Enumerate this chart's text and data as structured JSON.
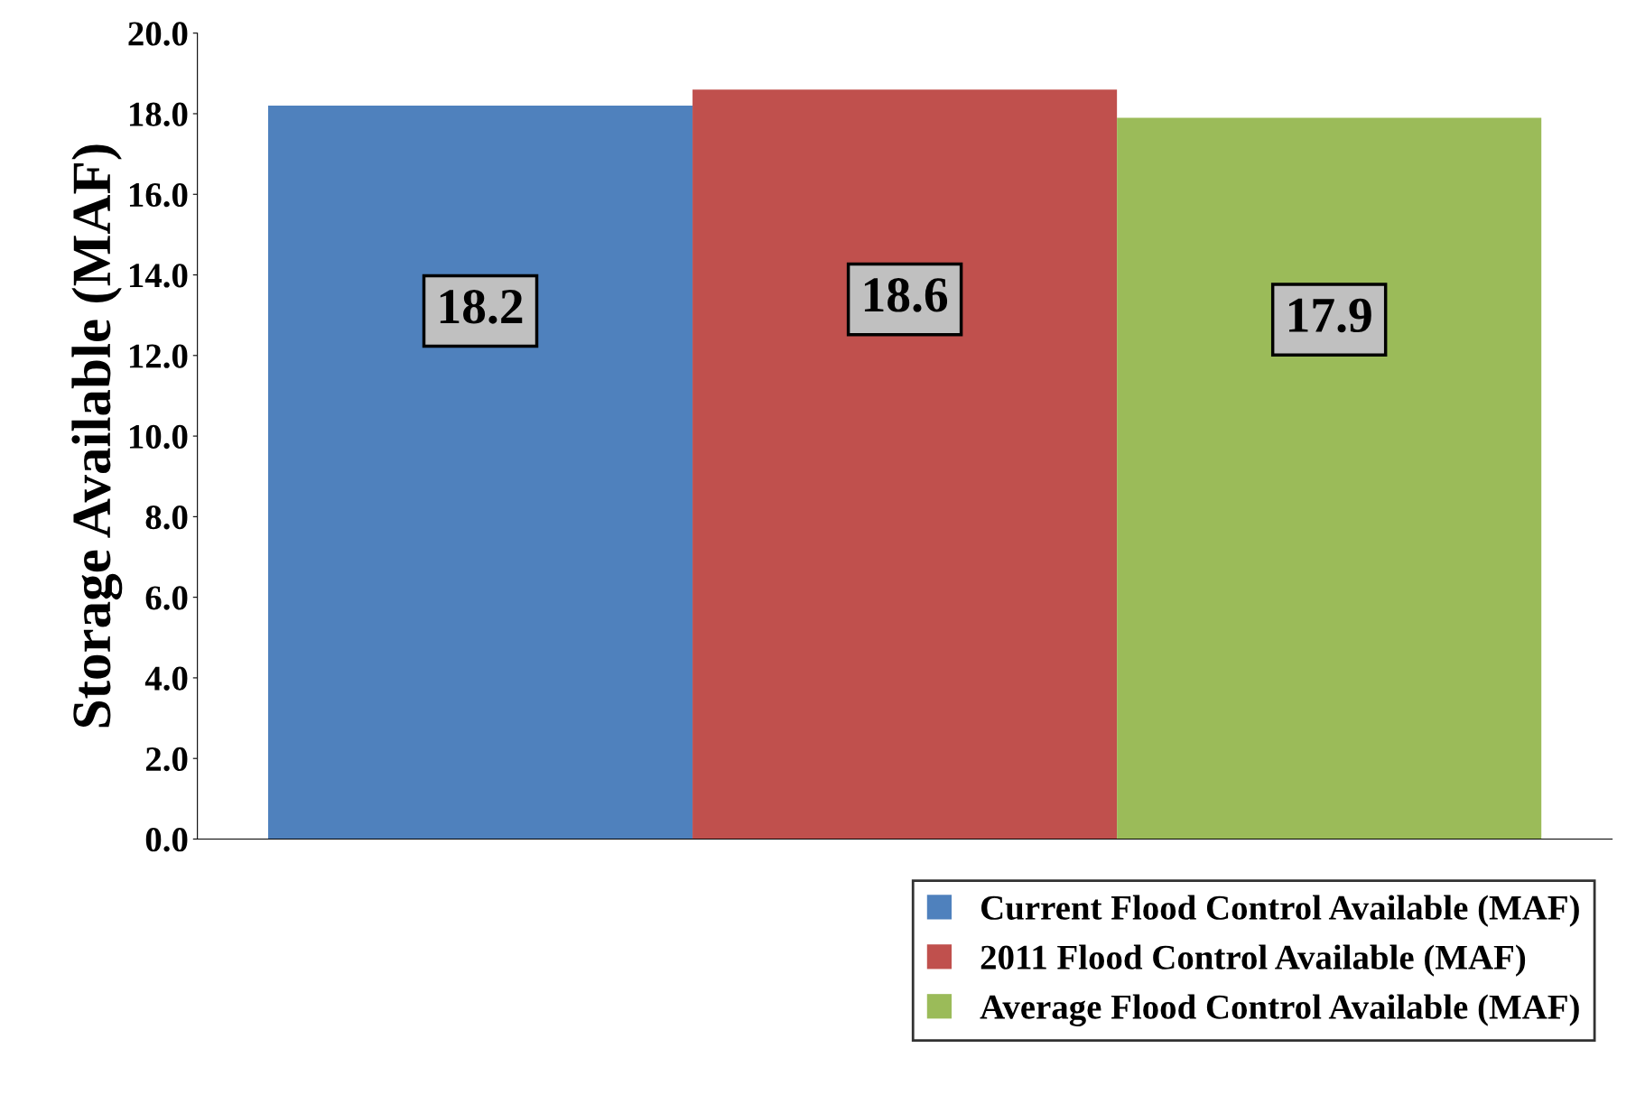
{
  "chart_data": {
    "type": "bar",
    "ylabel": "Storage Available (MAF)",
    "categories": [
      null
    ],
    "series": [
      {
        "name": "Current Flood Control Available (MAF)",
        "color": "#4f81bd",
        "values": [
          18.2
        ]
      },
      {
        "name": "2011 Flood Control Available (MAF)",
        "color": "#c0504d",
        "values": [
          18.6
        ]
      },
      {
        "name": "Average Flood Control Available (MAF)",
        "color": "#9bbb59",
        "values": [
          17.9
        ]
      }
    ],
    "ylim": [
      0,
      20
    ],
    "yticks": [
      {
        "value": 0,
        "label": "0.0"
      },
      {
        "value": 2,
        "label": "2.0"
      },
      {
        "value": 4,
        "label": "4.0"
      },
      {
        "value": 6,
        "label": "6.0"
      },
      {
        "value": 8,
        "label": "8.0"
      },
      {
        "value": 10,
        "label": "10.0"
      },
      {
        "value": 12,
        "label": "12.0"
      },
      {
        "value": 14,
        "label": "14.0"
      },
      {
        "value": 16,
        "label": "16.0"
      },
      {
        "value": 18,
        "label": "18.0"
      },
      {
        "value": 20,
        "label": "20.0"
      }
    ],
    "data_labels": true,
    "legend": "bottom right",
    "grid": false
  }
}
